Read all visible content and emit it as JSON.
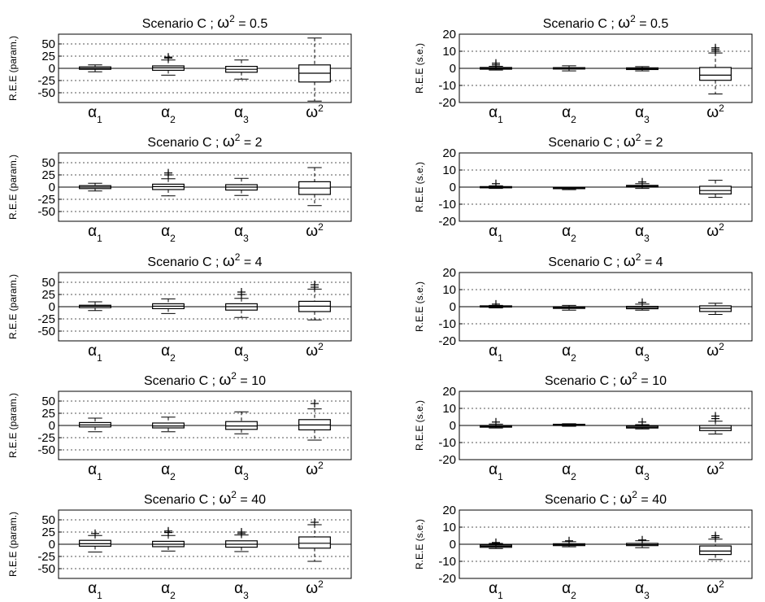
{
  "figure": {
    "y_label_params": "R.E.E (param.)",
    "y_label_se": "R.E.E (s.e.)"
  },
  "chart_data": [
    {
      "type": "box",
      "row": 0,
      "col": 0,
      "title": "Scenario C   ;   ω² = 0.5",
      "ylabel": "R.E.E (param.)",
      "categories": [
        "α1",
        "α2",
        "α3",
        "ω²"
      ],
      "ylim": [
        -70,
        70
      ],
      "yticks": [
        50,
        25,
        0,
        -25,
        -50
      ],
      "ytick_labels": [
        "50",
        "25",
        "0",
        "-25",
        "-50"
      ],
      "grid": "dotted",
      "boxes": [
        {
          "wlo": -7,
          "q1": -2,
          "med": 0,
          "q3": 3,
          "whi": 7,
          "outliers": []
        },
        {
          "wlo": -14,
          "q1": -4,
          "med": 1,
          "q3": 5,
          "whi": 17,
          "outliers": [
            21,
            23
          ]
        },
        {
          "wlo": -22,
          "q1": -8,
          "med": -2,
          "q3": 4,
          "whi": 17,
          "outliers": []
        },
        {
          "wlo": -67,
          "q1": -28,
          "med": -10,
          "q3": 7,
          "whi": 62,
          "outliers": []
        }
      ]
    },
    {
      "type": "box",
      "row": 0,
      "col": 1,
      "title": "Scenario C   ;   ω² = 0.5",
      "ylabel": "R.E.E (s.e.)",
      "categories": [
        "α1",
        "α2",
        "α3",
        "ω²"
      ],
      "ylim": [
        -20,
        20
      ],
      "yticks": [
        20,
        10,
        0,
        -10,
        -20
      ],
      "ytick_labels": [
        "20",
        "10",
        "0",
        "-10",
        "-20"
      ],
      "grid": "dotted",
      "boxes": [
        {
          "wlo": -1,
          "q1": -0.5,
          "med": 0,
          "q3": 0.5,
          "whi": 1.2,
          "outliers": [
            2,
            3
          ]
        },
        {
          "wlo": -1.5,
          "q1": -0.4,
          "med": 0,
          "q3": 0.4,
          "whi": 1.5,
          "outliers": []
        },
        {
          "wlo": -1.5,
          "q1": -0.7,
          "med": -0.3,
          "q3": 0.3,
          "whi": 1,
          "outliers": []
        },
        {
          "wlo": -15,
          "q1": -7,
          "med": -4,
          "q3": 0.5,
          "whi": 9,
          "outliers": [
            10,
            11,
            12
          ]
        }
      ]
    },
    {
      "type": "box",
      "row": 1,
      "col": 0,
      "title": "Scenario C   ;   ω² = 2",
      "ylabel": "R.E.E (param.)",
      "categories": [
        "α1",
        "α2",
        "α3",
        "ω²"
      ],
      "ylim": [
        -70,
        70
      ],
      "yticks": [
        50,
        25,
        0,
        -25,
        -50
      ],
      "ytick_labels": [
        "50",
        "25",
        "0",
        "-25",
        "-50"
      ],
      "grid": "dotted",
      "boxes": [
        {
          "wlo": -8,
          "q1": -3,
          "med": 0,
          "q3": 3,
          "whi": 8,
          "outliers": []
        },
        {
          "wlo": -18,
          "q1": -5,
          "med": 1,
          "q3": 6,
          "whi": 17,
          "outliers": [
            25,
            29
          ]
        },
        {
          "wlo": -17,
          "q1": -6,
          "med": 0,
          "q3": 5,
          "whi": 18,
          "outliers": []
        },
        {
          "wlo": -38,
          "q1": -15,
          "med": -2,
          "q3": 11,
          "whi": 40,
          "outliers": []
        }
      ]
    },
    {
      "type": "box",
      "row": 1,
      "col": 1,
      "title": "Scenario C   ;   ω² = 2",
      "ylabel": "R.E.E (s.e.)",
      "categories": [
        "α1",
        "α2",
        "α3",
        "ω²"
      ],
      "ylim": [
        -20,
        20
      ],
      "yticks": [
        20,
        10,
        0,
        -10,
        -20
      ],
      "ytick_labels": [
        "20",
        "10",
        "0",
        "-10",
        "-20"
      ],
      "grid": "dotted",
      "boxes": [
        {
          "wlo": -0.8,
          "q1": -0.3,
          "med": 0,
          "q3": 0.3,
          "whi": 0.8,
          "outliers": [
            2
          ]
        },
        {
          "wlo": -1.5,
          "q1": -0.8,
          "med": -0.5,
          "q3": -0.2,
          "whi": 0,
          "outliers": []
        },
        {
          "wlo": -0.8,
          "q1": 0,
          "med": 0.5,
          "q3": 1,
          "whi": 2,
          "outliers": [
            3
          ]
        },
        {
          "wlo": -6,
          "q1": -4,
          "med": -2,
          "q3": 0.5,
          "whi": 4,
          "outliers": []
        }
      ]
    },
    {
      "type": "box",
      "row": 2,
      "col": 0,
      "title": "Scenario C   ;   ω² = 4",
      "ylabel": "R.E.E (param.)",
      "categories": [
        "α1",
        "α2",
        "α3",
        "ω²"
      ],
      "ylim": [
        -70,
        70
      ],
      "yticks": [
        50,
        25,
        0,
        -25,
        -50
      ],
      "ytick_labels": [
        "50",
        "25",
        "0",
        "-25",
        "-50"
      ],
      "grid": "dotted",
      "boxes": [
        {
          "wlo": -8,
          "q1": -2,
          "med": 1,
          "q3": 3,
          "whi": 10,
          "outliers": []
        },
        {
          "wlo": -14,
          "q1": -4,
          "med": 1,
          "q3": 6,
          "whi": 16,
          "outliers": []
        },
        {
          "wlo": -22,
          "q1": -7,
          "med": 0,
          "q3": 6,
          "whi": 17,
          "outliers": [
            25,
            30
          ]
        },
        {
          "wlo": -27,
          "q1": -10,
          "med": 1,
          "q3": 11,
          "whi": 36,
          "outliers": [
            40,
            45
          ]
        }
      ]
    },
    {
      "type": "box",
      "row": 2,
      "col": 1,
      "title": "Scenario C   ;   ω² = 4",
      "ylabel": "R.E.E (s.e.)",
      "categories": [
        "α1",
        "α2",
        "α3",
        "ω²"
      ],
      "ylim": [
        -20,
        20
      ],
      "yticks": [
        20,
        10,
        0,
        -10,
        -20
      ],
      "ytick_labels": [
        "20",
        "10",
        "0",
        "-10",
        "-20"
      ],
      "grid": "dotted",
      "boxes": [
        {
          "wlo": -0.7,
          "q1": -0.2,
          "med": 0.2,
          "q3": 0.5,
          "whi": 0.8,
          "outliers": [
            1.5
          ]
        },
        {
          "wlo": -2,
          "q1": -1,
          "med": -0.5,
          "q3": 0,
          "whi": 0.8,
          "outliers": []
        },
        {
          "wlo": -2,
          "q1": -1.2,
          "med": -0.5,
          "q3": 0.2,
          "whi": 1.5,
          "outliers": [
            2.5
          ]
        },
        {
          "wlo": -4.5,
          "q1": -2.8,
          "med": -1,
          "q3": 0.5,
          "whi": 2,
          "outliers": []
        }
      ]
    },
    {
      "type": "box",
      "row": 3,
      "col": 0,
      "title": "Scenario C   ;   ω² = 10",
      "ylabel": "R.E.E (param.)",
      "categories": [
        "α1",
        "α2",
        "α3",
        "ω²"
      ],
      "ylim": [
        -70,
        70
      ],
      "yticks": [
        50,
        25,
        0,
        -25,
        -50
      ],
      "ytick_labels": [
        "50",
        "25",
        "0",
        "-25",
        "-50"
      ],
      "grid": "dotted",
      "boxes": [
        {
          "wlo": -13,
          "q1": -3,
          "med": 1,
          "q3": 6,
          "whi": 15,
          "outliers": []
        },
        {
          "wlo": -13,
          "q1": -5,
          "med": -1,
          "q3": 5,
          "whi": 17,
          "outliers": []
        },
        {
          "wlo": -17,
          "q1": -8,
          "med": -1,
          "q3": 8,
          "whi": 28,
          "outliers": []
        },
        {
          "wlo": -30,
          "q1": -9,
          "med": 1,
          "q3": 12,
          "whi": 34,
          "outliers": [
            45
          ]
        }
      ]
    },
    {
      "type": "box",
      "row": 3,
      "col": 1,
      "title": "Scenario C   ;   ω² = 10",
      "ylabel": "R.E.E (s.e.)",
      "categories": [
        "α1",
        "α2",
        "α3",
        "ω²"
      ],
      "ylim": [
        -20,
        20
      ],
      "yticks": [
        20,
        10,
        0,
        -10,
        -20
      ],
      "ytick_labels": [
        "20",
        "10",
        "0",
        "-10",
        "-20"
      ],
      "grid": "dotted",
      "boxes": [
        {
          "wlo": -1.5,
          "q1": -1,
          "med": -0.5,
          "q3": 0,
          "whi": 0.8,
          "outliers": [
            2
          ]
        },
        {
          "wlo": -0.5,
          "q1": 0,
          "med": 0.3,
          "q3": 0.7,
          "whi": 1,
          "outliers": []
        },
        {
          "wlo": -2,
          "q1": -1.5,
          "med": -1,
          "q3": -0.3,
          "whi": 0.5,
          "outliers": [
            2
          ]
        },
        {
          "wlo": -5,
          "q1": -3,
          "med": -1.5,
          "q3": 0,
          "whi": 2.5,
          "outliers": [
            4,
            5.5
          ]
        }
      ]
    },
    {
      "type": "box",
      "row": 4,
      "col": 0,
      "title": "Scenario C   ;   ω² = 40",
      "ylabel": "R.E.E (param.)",
      "categories": [
        "α1",
        "α2",
        "α3",
        "ω²"
      ],
      "ylim": [
        -70,
        70
      ],
      "yticks": [
        50,
        25,
        0,
        -25,
        -50
      ],
      "ytick_labels": [
        "50",
        "25",
        "0",
        "-25",
        "-50"
      ],
      "grid": "dotted",
      "boxes": [
        {
          "wlo": -16,
          "q1": -4,
          "med": 1,
          "q3": 8,
          "whi": 18,
          "outliers": [
            22
          ]
        },
        {
          "wlo": -14,
          "q1": -5,
          "med": 0,
          "q3": 6,
          "whi": 18,
          "outliers": [
            24,
            27
          ]
        },
        {
          "wlo": -15,
          "q1": -6,
          "med": 0,
          "q3": 7,
          "whi": 19,
          "outliers": [
            22,
            25
          ]
        },
        {
          "wlo": -35,
          "q1": -8,
          "med": 2,
          "q3": 15,
          "whi": 40,
          "outliers": [
            45
          ]
        }
      ]
    },
    {
      "type": "box",
      "row": 4,
      "col": 1,
      "title": "Scenario C   ;   ω² = 40",
      "ylabel": "R.E.E (s.e.)",
      "categories": [
        "α1",
        "α2",
        "α3",
        "ω²"
      ],
      "ylim": [
        -20,
        20
      ],
      "yticks": [
        20,
        10,
        0,
        -10,
        -20
      ],
      "ytick_labels": [
        "20",
        "10",
        "0",
        "-10",
        "-20"
      ],
      "grid": "dotted",
      "boxes": [
        {
          "wlo": -2.5,
          "q1": -1.8,
          "med": -1.2,
          "q3": -0.5,
          "whi": 0.5,
          "outliers": [
            1
          ]
        },
        {
          "wlo": -1.5,
          "q1": -0.8,
          "med": -0.3,
          "q3": 0.3,
          "whi": 1.5,
          "outliers": [
            2
          ]
        },
        {
          "wlo": -2,
          "q1": -0.8,
          "med": -0.2,
          "q3": 0.5,
          "whi": 2,
          "outliers": [
            2.5
          ]
        },
        {
          "wlo": -9,
          "q1": -6,
          "med": -4,
          "q3": -1,
          "whi": 3,
          "outliers": [
            4,
            5
          ]
        }
      ]
    }
  ]
}
